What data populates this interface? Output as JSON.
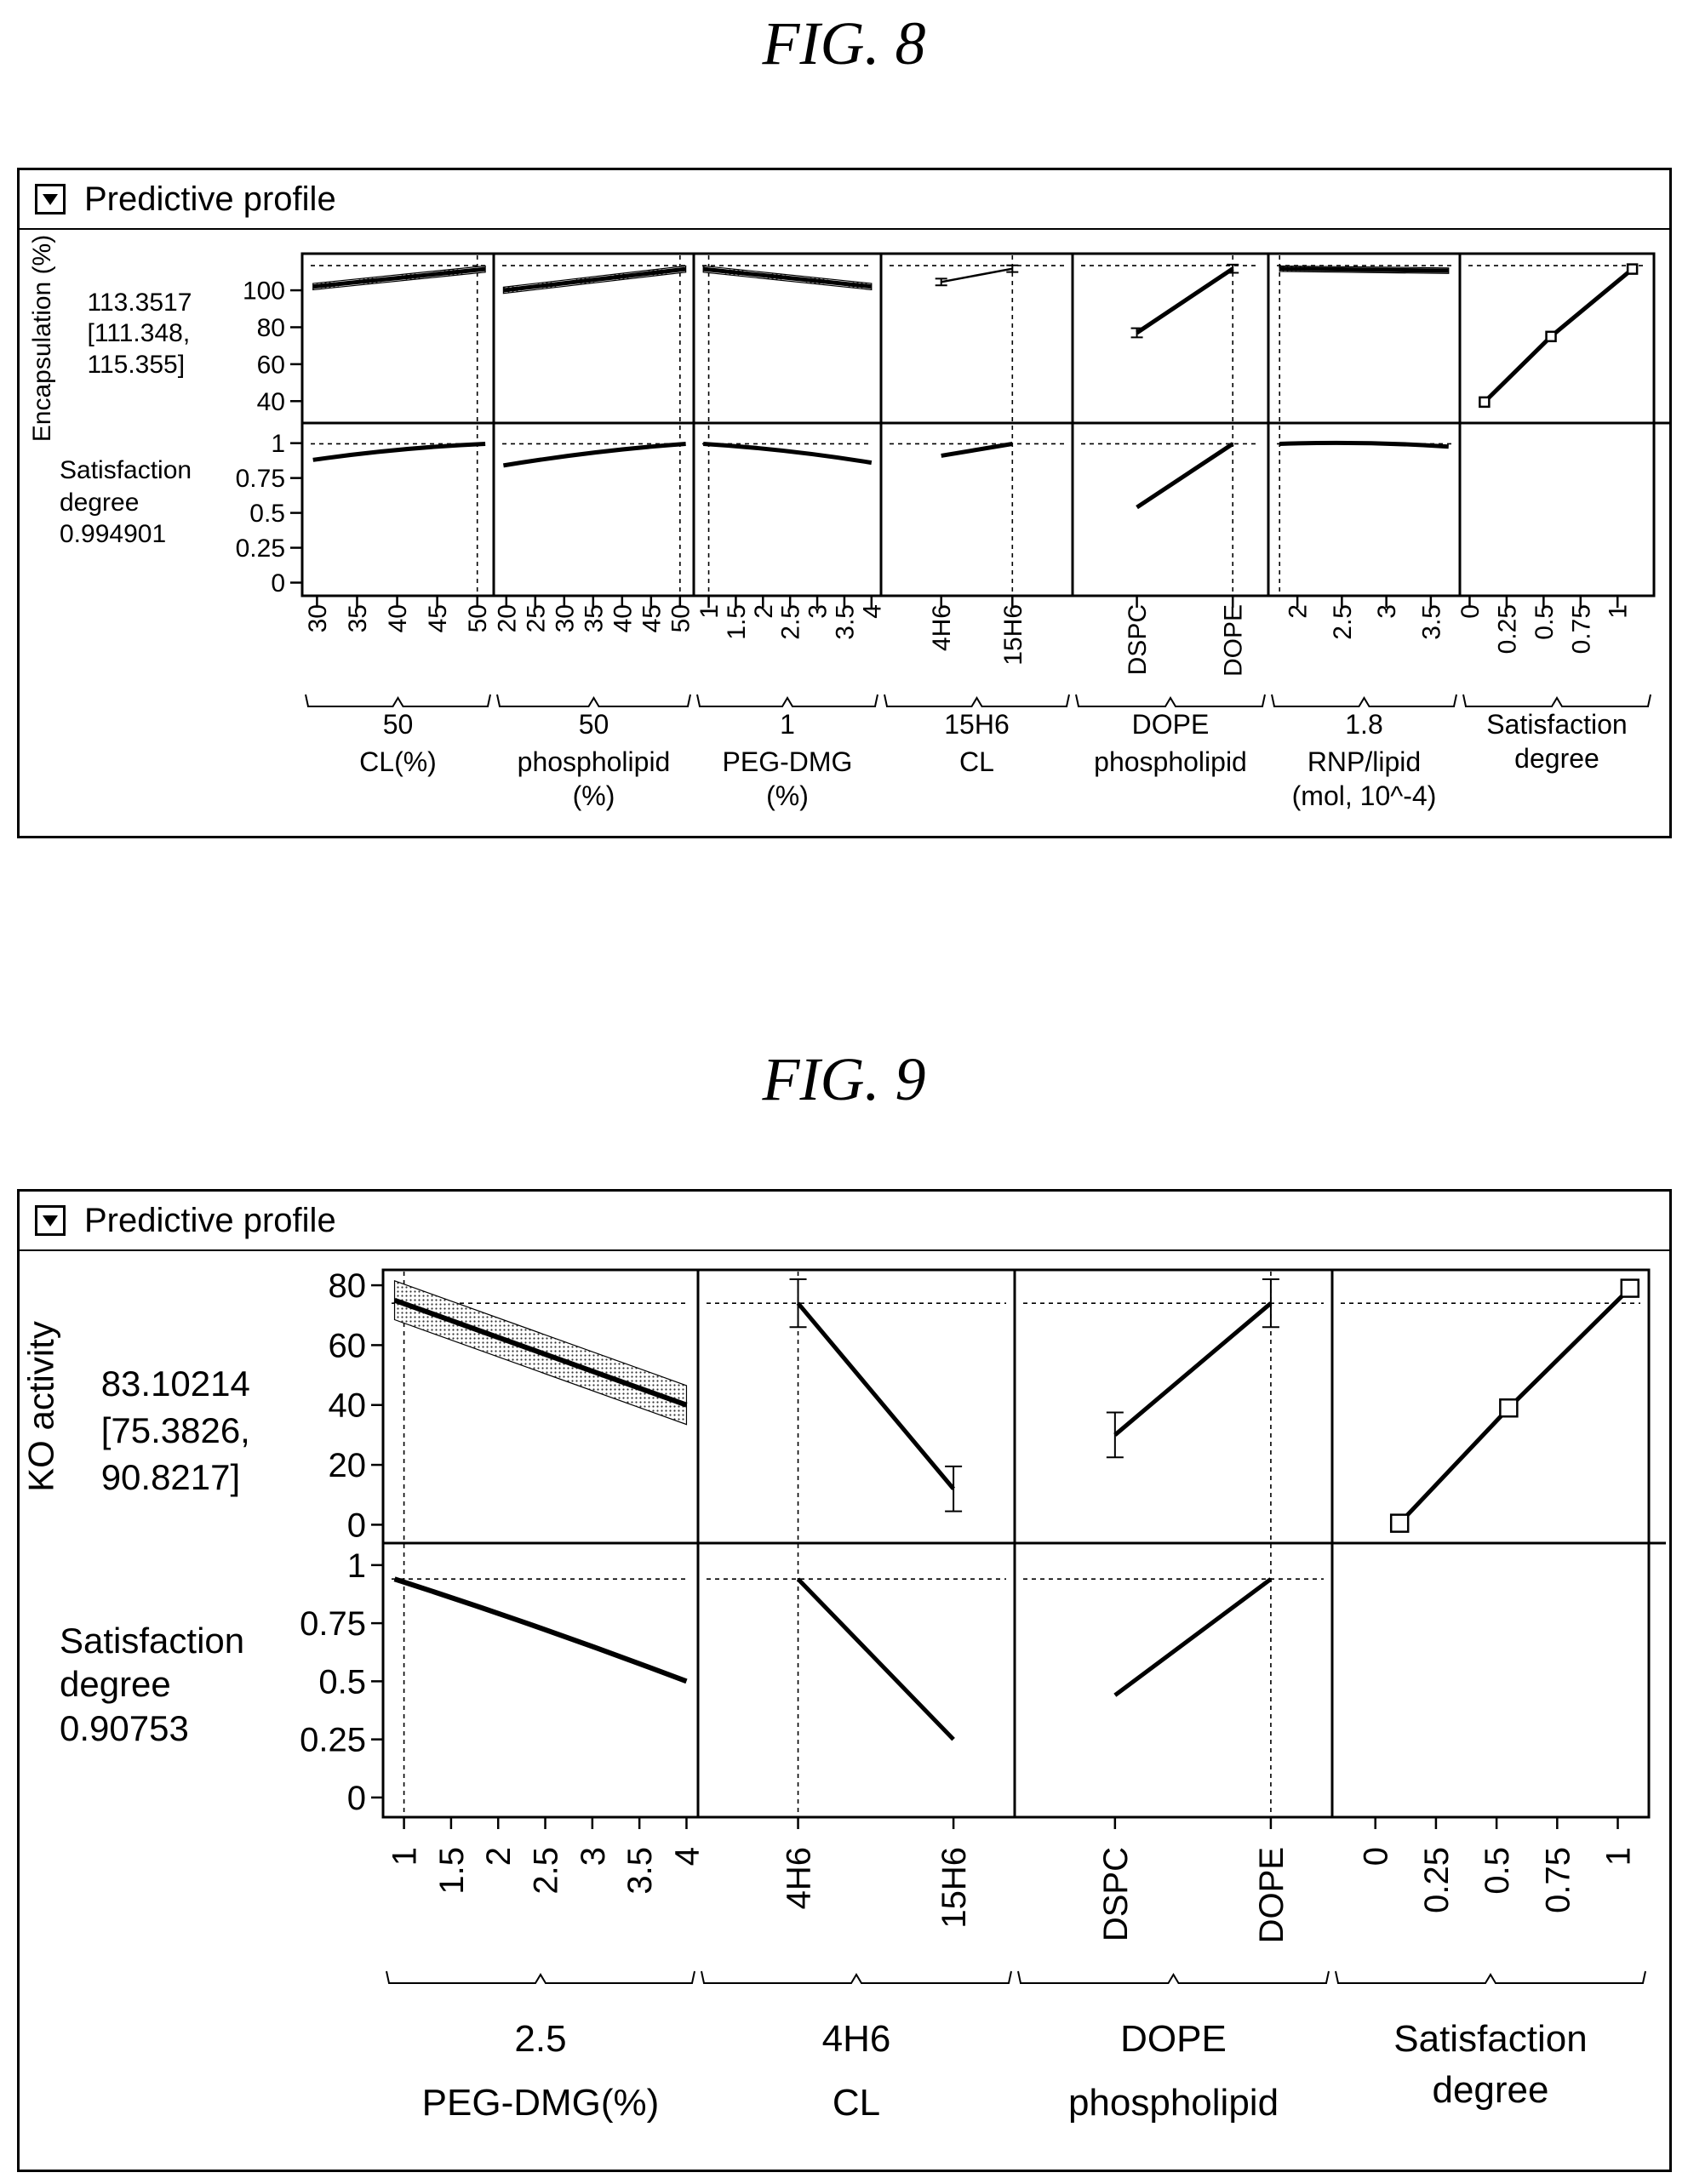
{
  "figures": [
    {
      "fig_label": "FIG. 8",
      "panel_title": "Predictive profile"
    },
    {
      "fig_label": "FIG. 9",
      "panel_title": "Predictive profile"
    }
  ],
  "chart_data": [
    {
      "type": "line",
      "chart": "prediction-profiler",
      "figure": "FIG. 8",
      "responses": [
        {
          "name": "Encapsulation (%)",
          "value": "113.3517",
          "ci": [
            "[111.348,",
            "115.355]"
          ],
          "ticks": [
            40,
            60,
            80,
            100
          ],
          "ylim": [
            30,
            118
          ],
          "current": 113.35
        },
        {
          "name": "Satisfaction degree",
          "value": "0.994901",
          "ci": [],
          "ticks": [
            0,
            0.25,
            0.5,
            0.75,
            1
          ],
          "ticklabels": [
            "0",
            "0.25",
            "0.5",
            "0.75",
            "1"
          ],
          "ylim": [
            -0.07,
            1.12
          ],
          "current": 0.995
        }
      ],
      "factors": [
        {
          "name": [
            "CL(%)"
          ],
          "value": "50",
          "kind": "continuous",
          "xlim": [
            29,
            51.2
          ],
          "ticks": [
            30,
            35,
            40,
            45,
            50
          ],
          "current": 50,
          "enc": {
            "x": [
              29.5,
              51
            ],
            "y": [
              102,
              111.5
            ],
            "band": 1.7
          },
          "sat": {
            "x": [
              29.5,
              51
            ],
            "y": [
              0.88,
              0.995
            ]
          }
        },
        {
          "name": [
            "phospholipid",
            "(%)"
          ],
          "value": "50",
          "kind": "continuous",
          "xlim": [
            19,
            51.2
          ],
          "ticks": [
            20,
            25,
            30,
            35,
            40,
            45,
            50
          ],
          "current": 50,
          "enc": {
            "x": [
              19.5,
              51
            ],
            "y": [
              100,
              111.5
            ],
            "band": 1.7
          },
          "sat": {
            "x": [
              19.5,
              51
            ],
            "y": [
              0.84,
              0.995
            ]
          }
        },
        {
          "name": [
            "PEG-DMG",
            "(%)"
          ],
          "value": "1",
          "kind": "continuous",
          "xlim": [
            0.85,
            4.05
          ],
          "ticks": [
            1,
            1.5,
            2,
            2.5,
            3,
            3.5,
            4
          ],
          "current": 1,
          "enc": {
            "x": [
              0.9,
              4
            ],
            "y": [
              111.5,
              102
            ],
            "band": 1.7
          },
          "sat": {
            "x": [
              0.9,
              4
            ],
            "y": [
              0.995,
              0.86
            ]
          }
        },
        {
          "name": [
            "CL"
          ],
          "value": "15H6",
          "kind": "categorical",
          "xlim": [
            -0.75,
            1.75
          ],
          "ticks": [
            0,
            1
          ],
          "ticklabels": [
            "4H6",
            "15H6"
          ],
          "current": 1,
          "enc": {
            "x": [
              0,
              1
            ],
            "y": [
              104.5,
              111.7
            ],
            "err": [
              1.8,
              1.8
            ]
          },
          "sat": {
            "x": [
              0,
              1
            ],
            "y": [
              0.91,
              0.995
            ]
          }
        },
        {
          "name": [
            "phospholipid"
          ],
          "value": "DOPE",
          "kind": "categorical",
          "xlim": [
            -0.6,
            1.3
          ],
          "ticks": [
            0,
            1
          ],
          "ticklabels": [
            "DSPC",
            "DOPE"
          ],
          "current": 1,
          "enc": {
            "x": [
              0,
              1
            ],
            "y": [
              77,
              111.7
            ],
            "err": [
              2.5,
              2.2
            ]
          },
          "sat": {
            "x": [
              0,
              1
            ],
            "y": [
              0.54,
              0.995
            ]
          }
        },
        {
          "name": [
            "RNP/lipid",
            "(mol, 10^-4)"
          ],
          "value": "1.8",
          "kind": "continuous",
          "xlim": [
            1.75,
            3.75
          ],
          "ticks": [
            2,
            2.5,
            3,
            3.5
          ],
          "current": 1.8,
          "enc": {
            "x": [
              1.8,
              3.7
            ],
            "y": [
              111.7,
              110.6
            ],
            "band": 1.5
          },
          "sat": {
            "x": [
              1.8,
              3.7
            ],
            "y": [
              0.995,
              0.975
            ]
          }
        },
        {
          "name": [
            "Satisfaction",
            "degree"
          ],
          "value": "",
          "kind": "desirability",
          "xlim": [
            -0.02,
            1.2
          ],
          "ticks": [
            0,
            0.25,
            0.5,
            0.75,
            1
          ],
          "ticklabels": [
            "0",
            "0.25",
            "0.5",
            "0.75",
            "1"
          ],
          "enc": {
            "x": [
              0.1,
              0.55,
              1.1
            ],
            "y": [
              39.5,
              75,
              111.5
            ]
          }
        }
      ]
    },
    {
      "type": "line",
      "chart": "prediction-profiler",
      "figure": "FIG. 9",
      "responses": [
        {
          "name": "KO activity",
          "value": "83.10214",
          "ci": [
            "[75.3826,",
            "90.8217]"
          ],
          "ticks": [
            0,
            20,
            40,
            60,
            80
          ],
          "ylim": [
            -5,
            84
          ],
          "current": 74
        },
        {
          "name": "Satisfaction degree",
          "value": "0.90753",
          "ci": [],
          "ticks": [
            0,
            0.25,
            0.5,
            0.75,
            1
          ],
          "ticklabels": [
            "0",
            "0.25",
            "0.5",
            "0.75",
            "1"
          ],
          "ylim": [
            -0.07,
            1.08
          ],
          "current": 0.94
        }
      ],
      "factors": [
        {
          "name": [
            "PEG-DMG(%)"
          ],
          "value": "2.5",
          "kind": "continuous",
          "xlim": [
            0.85,
            4.05
          ],
          "ticks": [
            1,
            1.5,
            2,
            2.5,
            3,
            3.5,
            4
          ],
          "current": 1,
          "enc": {
            "x": [
              0.9,
              4
            ],
            "y": [
              75,
              40
            ],
            "band": 6.5
          },
          "sat": {
            "x": [
              0.9,
              4
            ],
            "y": [
              0.94,
              0.5
            ]
          }
        },
        {
          "name": [
            "CL"
          ],
          "value": "4H6",
          "kind": "categorical",
          "xlim": [
            -0.6,
            1.35
          ],
          "ticks": [
            0,
            1
          ],
          "ticklabels": [
            "4H6",
            "15H6"
          ],
          "current": 0,
          "enc": {
            "x": [
              0,
              1
            ],
            "y": [
              74,
              12
            ],
            "err": [
              8,
              7.5
            ]
          },
          "sat": {
            "x": [
              0,
              1
            ],
            "y": [
              0.94,
              0.25
            ]
          }
        },
        {
          "name": [
            "phospholipid"
          ],
          "value": "DOPE",
          "kind": "categorical",
          "xlim": [
            -0.6,
            1.35
          ],
          "ticks": [
            0,
            1
          ],
          "ticklabels": [
            "DSPC",
            "DOPE"
          ],
          "current": 1,
          "enc": {
            "x": [
              0,
              1
            ],
            "y": [
              30,
              74
            ],
            "err": [
              7.5,
              8
            ]
          },
          "sat": {
            "x": [
              0,
              1
            ],
            "y": [
              0.44,
              0.94
            ]
          }
        },
        {
          "name": [
            "Satisfaction",
            "degree"
          ],
          "value": "",
          "kind": "desirability",
          "xlim": [
            -0.15,
            1.1
          ],
          "ticks": [
            0,
            0.25,
            0.5,
            0.75,
            1
          ],
          "ticklabels": [
            "0",
            "0.25",
            "0.5",
            "0.75",
            "1"
          ],
          "enc": {
            "x": [
              0.1,
              0.55,
              1.05
            ],
            "y": [
              0.5,
              39,
              79
            ]
          }
        }
      ]
    }
  ]
}
